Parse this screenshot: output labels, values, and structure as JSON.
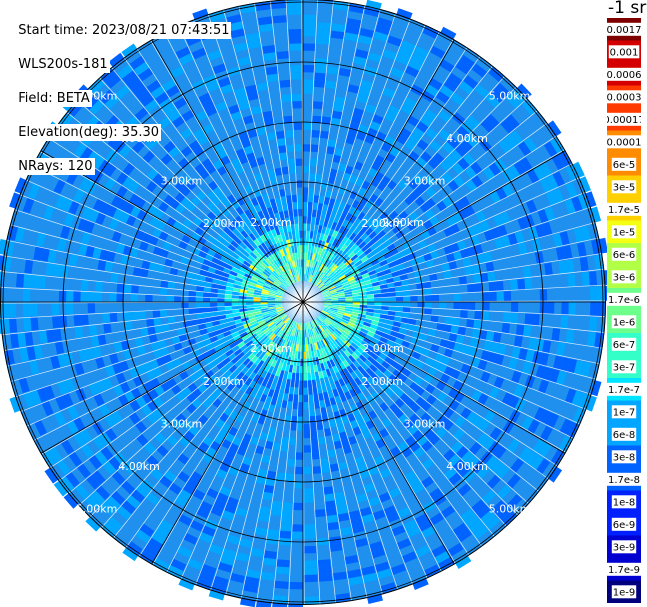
{
  "header": {
    "start_time": "Start time: 2023/08/21 07:43:51",
    "instrument": "WLS200s-181",
    "field": "Field: BETA",
    "elevation": "Elevation(deg): 35.30",
    "nrays": "NRays: 120"
  },
  "units_label": "-1 sr",
  "chart_data": {
    "type": "heatmap",
    "projection": "polar-ppi",
    "rays": 120,
    "range_rings_km": [
      1,
      2,
      3,
      4,
      5
    ],
    "ring_labels": [
      "2.00km",
      "3.00km",
      "4.00km",
      "5.00km",
      "2.00km",
      "3.00km",
      "4.00km",
      "5.00km",
      "2.00km",
      "3.00km",
      "4.00km",
      "5.00km",
      "2.00km",
      "3.00km",
      "4.00km",
      "5.00km",
      "2.00km",
      "2.00km",
      "2.00km",
      "2.00km"
    ],
    "colorbar_ticks": [
      "0.0017",
      "0.001",
      "0.0006",
      "0.0003",
      "0.00017",
      "0.0001",
      "6e-5",
      "3e-5",
      "1.7e-5",
      "1e-5",
      "6e-6",
      "3e-6",
      "1.7e-6",
      "1e-6",
      "6e-7",
      "3e-7",
      "1.7e-7",
      "1e-7",
      "6e-8",
      "3e-8",
      "1.7e-8",
      "1e-8",
      "6e-9",
      "3e-9",
      "1.7e-9",
      "1e-9"
    ],
    "colorscale": [
      "#7f0000",
      "#d40000",
      "#ff3a00",
      "#ff8c00",
      "#ffd000",
      "#f5ff10",
      "#b2ff48",
      "#6dff8c",
      "#34ffc8",
      "#00e4ff",
      "#00a6ff",
      "#0062ff",
      "#0020ff",
      "#0000d0",
      "#00007f"
    ],
    "scale": "log",
    "value_range": [
      1e-09,
      0.0017
    ]
  }
}
